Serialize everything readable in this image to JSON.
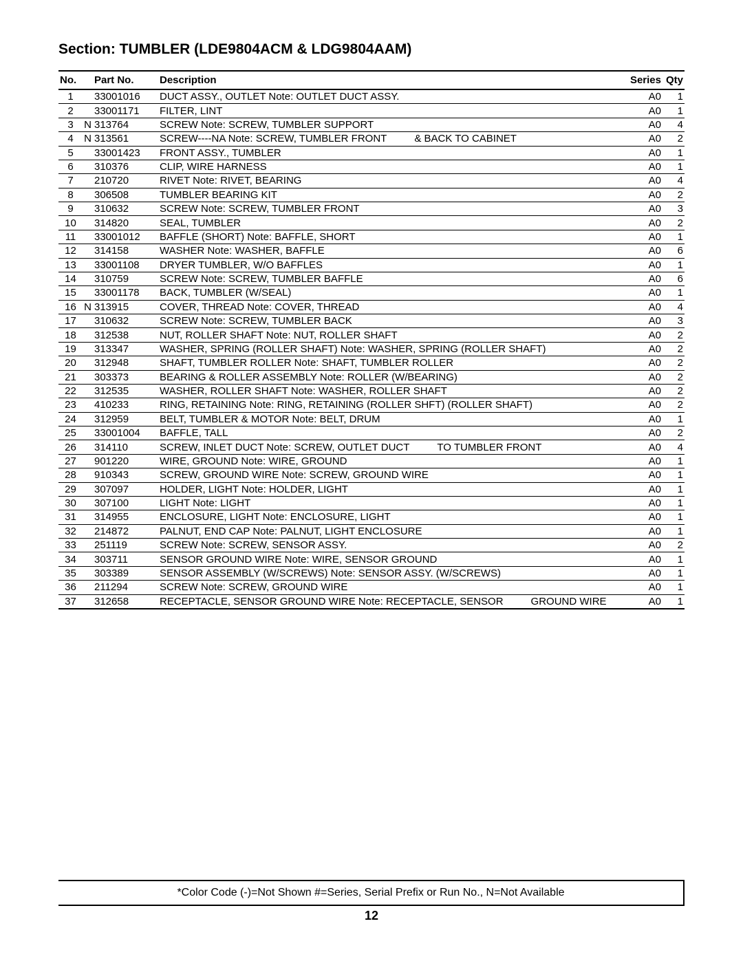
{
  "section_title": "Section: TUMBLER (LDE9804ACM & LDG9804AAM)",
  "columns": {
    "no": "No.",
    "part": "Part No.",
    "desc": "Description",
    "series": "Series",
    "qty": "Qty"
  },
  "rows": [
    {
      "no": "1",
      "flag": "",
      "part": "33001016",
      "desc": "DUCT ASSY., OUTLET  Note: OUTLET DUCT ASSY.",
      "series": "A0",
      "qty": "1"
    },
    {
      "no": "2",
      "flag": "",
      "part": "33001171",
      "desc": "FILTER, LINT",
      "series": "A0",
      "qty": "1"
    },
    {
      "no": "3",
      "flag": "N",
      "part": "313764",
      "desc": "SCREW  Note: SCREW, TUMBLER SUPPORT",
      "series": "A0",
      "qty": "4"
    },
    {
      "no": "4",
      "flag": "N",
      "part": "313561",
      "desc": "SCREW----NA  Note: SCREW, TUMBLER FRONT",
      "extra": "& BACK TO CABINET",
      "series": "A0",
      "qty": "2"
    },
    {
      "no": "5",
      "flag": "",
      "part": "33001423",
      "desc": "FRONT ASSY., TUMBLER",
      "series": "A0",
      "qty": "1"
    },
    {
      "no": "6",
      "flag": "",
      "part": "310376",
      "desc": "CLIP, WIRE HARNESS",
      "series": "A0",
      "qty": "1"
    },
    {
      "no": "7",
      "flag": "",
      "part": "210720",
      "desc": "RIVET  Note: RIVET, BEARING",
      "series": "A0",
      "qty": "4"
    },
    {
      "no": "8",
      "flag": "",
      "part": "306508",
      "desc": "TUMBLER BEARING KIT",
      "series": "A0",
      "qty": "2"
    },
    {
      "no": "9",
      "flag": "",
      "part": "310632",
      "desc": "SCREW  Note: SCREW, TUMBLER FRONT",
      "series": "A0",
      "qty": "3"
    },
    {
      "no": "10",
      "flag": "",
      "part": "314820",
      "desc": "SEAL, TUMBLER",
      "series": "A0",
      "qty": "2"
    },
    {
      "no": "11",
      "flag": "",
      "part": "33001012",
      "desc": "BAFFLE (SHORT)  Note: BAFFLE, SHORT",
      "series": "A0",
      "qty": "1"
    },
    {
      "no": "12",
      "flag": "",
      "part": "314158",
      "desc": "WASHER  Note: WASHER, BAFFLE",
      "series": "A0",
      "qty": "6"
    },
    {
      "no": "13",
      "flag": "",
      "part": "33001108",
      "desc": "DRYER TUMBLER, W/O BAFFLES",
      "series": "A0",
      "qty": "1"
    },
    {
      "no": "14",
      "flag": "",
      "part": "310759",
      "desc": "SCREW  Note: SCREW, TUMBLER BAFFLE",
      "series": "A0",
      "qty": "6"
    },
    {
      "no": "15",
      "flag": "",
      "part": "33001178",
      "desc": "BACK, TUMBLER (W/SEAL)",
      "series": "A0",
      "qty": "1"
    },
    {
      "no": "16",
      "flag": "N",
      "part": "313915",
      "desc": "COVER, THREAD  Note: COVER, THREAD",
      "series": "A0",
      "qty": "4"
    },
    {
      "no": "17",
      "flag": "",
      "part": "310632",
      "desc": "SCREW  Note: SCREW, TUMBLER BACK",
      "series": "A0",
      "qty": "3"
    },
    {
      "no": "18",
      "flag": "",
      "part": "312538",
      "desc": "NUT, ROLLER SHAFT  Note: NUT, ROLLER SHAFT",
      "series": "A0",
      "qty": "2"
    },
    {
      "no": "19",
      "flag": "",
      "part": "313347",
      "desc": "WASHER, SPRING (ROLLER SHAFT)  Note: WASHER, SPRING (ROLLER SHAFT)",
      "series": "A0",
      "qty": "2"
    },
    {
      "no": "20",
      "flag": "",
      "part": "312948",
      "desc": "SHAFT, TUMBLER ROLLER  Note: SHAFT, TUMBLER ROLLER",
      "series": "A0",
      "qty": "2"
    },
    {
      "no": "21",
      "flag": "",
      "part": "303373",
      "desc": "BEARING & ROLLER ASSEMBLY  Note: ROLLER (W/BEARING)",
      "series": "A0",
      "qty": "2"
    },
    {
      "no": "22",
      "flag": "",
      "part": "312535",
      "desc": "WASHER, ROLLER SHAFT  Note: WASHER, ROLLER SHAFT",
      "series": "A0",
      "qty": "2"
    },
    {
      "no": "23",
      "flag": "",
      "part": "410233",
      "desc": "RING, RETAINING  Note: RING, RETAINING (ROLLER SHFT) (ROLLER SHAFT)",
      "series": "A0",
      "qty": "2"
    },
    {
      "no": "24",
      "flag": "",
      "part": "312959",
      "desc": "BELT, TUMBLER & MOTOR  Note: BELT, DRUM",
      "series": "A0",
      "qty": "1"
    },
    {
      "no": "25",
      "flag": "",
      "part": "33001004",
      "desc": "BAFFLE, TALL",
      "series": "A0",
      "qty": "2"
    },
    {
      "no": "26",
      "flag": "",
      "part": "314110",
      "desc": "SCREW, INLET DUCT  Note: SCREW, OUTLET DUCT",
      "extra": "TO TUMBLER FRONT",
      "series": "A0",
      "qty": "4"
    },
    {
      "no": "27",
      "flag": "",
      "part": "901220",
      "desc": "WIRE, GROUND  Note: WIRE, GROUND",
      "series": "A0",
      "qty": "1"
    },
    {
      "no": "28",
      "flag": "",
      "part": "910343",
      "desc": "SCREW, GROUND WIRE  Note: SCREW, GROUND WIRE",
      "series": "A0",
      "qty": "1"
    },
    {
      "no": "29",
      "flag": "",
      "part": "307097",
      "desc": "HOLDER, LIGHT  Note: HOLDER, LIGHT",
      "series": "A0",
      "qty": "1"
    },
    {
      "no": "30",
      "flag": "",
      "part": "307100",
      "desc": "LIGHT  Note: LIGHT",
      "series": "A0",
      "qty": "1"
    },
    {
      "no": "31",
      "flag": "",
      "part": "314955",
      "desc": "ENCLOSURE, LIGHT  Note: ENCLOSURE, LIGHT",
      "series": "A0",
      "qty": "1"
    },
    {
      "no": "32",
      "flag": "",
      "part": "214872",
      "desc": "PALNUT, END CAP  Note: PALNUT, LIGHT ENCLOSURE",
      "series": "A0",
      "qty": "1"
    },
    {
      "no": "33",
      "flag": "",
      "part": "251119",
      "desc": "SCREW  Note: SCREW, SENSOR ASSY.",
      "series": "A0",
      "qty": "2"
    },
    {
      "no": "34",
      "flag": "",
      "part": "303711",
      "desc": "SENSOR GROUND WIRE  Note: WIRE, SENSOR GROUND",
      "series": "A0",
      "qty": "1"
    },
    {
      "no": "35",
      "flag": "",
      "part": "303389",
      "desc": "SENSOR ASSEMBLY (W/SCREWS)  Note: SENSOR ASSY. (W/SCREWS)",
      "series": "A0",
      "qty": "1"
    },
    {
      "no": "36",
      "flag": "",
      "part": "211294",
      "desc": "SCREW  Note: SCREW, GROUND WIRE",
      "series": "A0",
      "qty": "1"
    },
    {
      "no": "37",
      "flag": "",
      "part": "312658",
      "desc": "RECEPTACLE, SENSOR GROUND WIRE  Note: RECEPTACLE, SENSOR",
      "extra": "GROUND WIRE",
      "series": "A0",
      "qty": "1"
    }
  ],
  "footer_text": "*Color Code   (-)=Not Shown   #=Series, Serial Prefix or Run No.,  N=Not Available",
  "page_number": "12",
  "styling": {
    "font_family": "Arial, Helvetica, sans-serif",
    "title_fontsize": 21,
    "header_fontsize": 15,
    "body_fontsize": 15,
    "footer_fontsize": 16,
    "pagenum_fontsize": 18,
    "text_color": "#000000",
    "background_color": "#ffffff",
    "border_color": "#000000",
    "header_border_width": 2,
    "row_border_width": 1
  }
}
